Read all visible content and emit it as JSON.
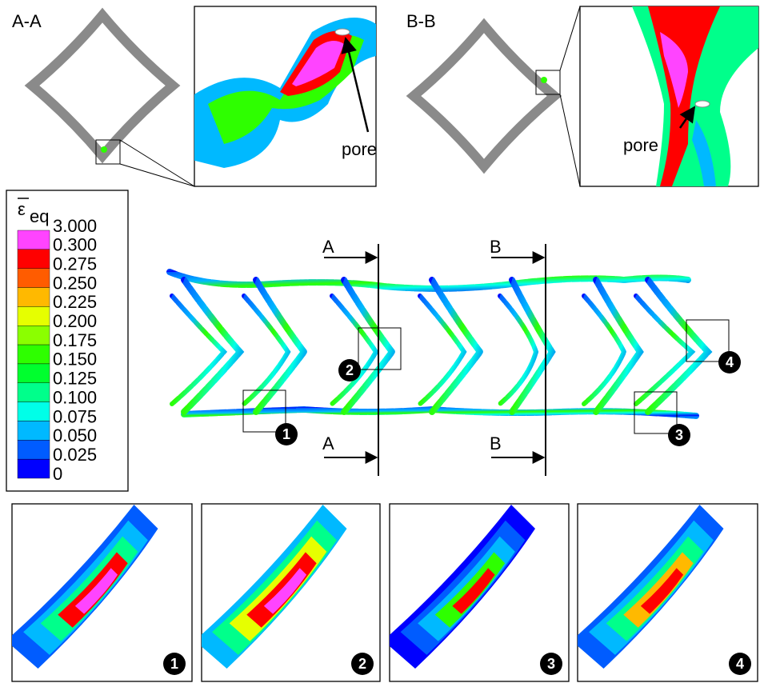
{
  "sections": [
    {
      "label": "A-A",
      "pore_label": "pore"
    },
    {
      "label": "B-B",
      "pore_label": "pore"
    }
  ],
  "legend": {
    "symbol": "ε",
    "subscript": "eq",
    "levels": [
      "3.000",
      "0.300",
      "0.275",
      "0.250",
      "0.225",
      "0.200",
      "0.175",
      "0.150",
      "0.125",
      "0.100",
      "0.075",
      "0.050",
      "0.025",
      "0"
    ],
    "colors": [
      "#ff44ff",
      "#ff0000",
      "#ff5c00",
      "#ffb900",
      "#e6ff00",
      "#8bff00",
      "#2eff00",
      "#00ff2e",
      "#00ff8b",
      "#00ffe8",
      "#00b9ff",
      "#005cff",
      "#0000ff"
    ]
  },
  "cut_lines": [
    {
      "top_label": "A",
      "bottom_label": "A"
    },
    {
      "top_label": "B",
      "bottom_label": "B"
    }
  ],
  "regions": [
    "1",
    "2",
    "3",
    "4"
  ]
}
